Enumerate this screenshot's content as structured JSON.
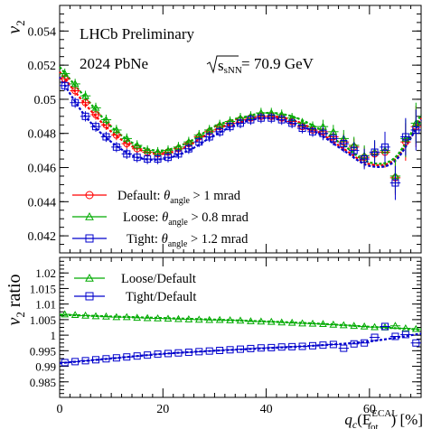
{
  "chart_data": [
    {
      "type": "scatter",
      "ylabel": "v2",
      "ylabel_parts": {
        "main": "v",
        "sub": "2"
      },
      "annotations": [
        "LHCb Preliminary",
        "2024 PbNe",
        "sNN",
        "= 70.9 GeV"
      ],
      "xlim": [
        0,
        70
      ],
      "ylim": [
        0.041,
        0.0555
      ],
      "x_ticks": [
        0,
        20,
        40,
        60
      ],
      "y_ticks": [
        "0.042",
        "0.044",
        "0.046",
        "0.048",
        "0.05",
        "0.052",
        "0.054"
      ],
      "y_tick_values": [
        0.042,
        0.044,
        0.046,
        0.048,
        0.05,
        0.052,
        0.054
      ],
      "legend_placement": "bottom-left",
      "legend": [
        {
          "prefix": "Default:",
          "theta": "θ",
          "sub": "angle",
          "suffix": "> 1 mrad",
          "color": "#ff0000",
          "marker": "circle"
        },
        {
          "prefix": "Loose:",
          "theta": "θ",
          "sub": "angle",
          "suffix": "> 0.8 mrad",
          "color": "#00aa00",
          "marker": "triangle"
        },
        {
          "prefix": "Tight:",
          "theta": "θ",
          "sub": "angle",
          "suffix": "> 1.2 mrad",
          "color": "#0000cc",
          "marker": "square"
        }
      ],
      "x": [
        1,
        3,
        5,
        7,
        9,
        11,
        13,
        15,
        17,
        19,
        21,
        23,
        25,
        27,
        29,
        31,
        33,
        35,
        37,
        39,
        41,
        43,
        45,
        47,
        49,
        51,
        53,
        55,
        57,
        59,
        61,
        63,
        65,
        67,
        69
      ],
      "series": [
        {
          "name": "Default",
          "color": "#ff0000",
          "marker": "circle",
          "values": [
            0.0512,
            0.0505,
            0.0498,
            0.0491,
            0.0485,
            0.0479,
            0.0474,
            0.0471,
            0.0469,
            0.0468,
            0.0469,
            0.0471,
            0.0474,
            0.0478,
            0.0481,
            0.0484,
            0.0486,
            0.0488,
            0.0489,
            0.049,
            0.049,
            0.0489,
            0.0487,
            0.0484,
            0.0482,
            0.0481,
            0.0478,
            0.0475,
            0.0472,
            0.0466,
            0.0468,
            0.0469,
            0.0454,
            0.0475,
            0.0484
          ],
          "errors": [
            0.0003,
            0.0003,
            0.0003,
            0.0003,
            0.0003,
            0.0003,
            0.0003,
            0.0003,
            0.0003,
            0.0003,
            0.0003,
            0.0003,
            0.0003,
            0.0003,
            0.0003,
            0.0003,
            0.0003,
            0.0003,
            0.0003,
            0.0003,
            0.0003,
            0.0003,
            0.0003,
            0.0003,
            0.0003,
            0.0004,
            0.0004,
            0.0005,
            0.0005,
            0.0006,
            0.0007,
            0.0009,
            0.001,
            0.0011,
            0.0012
          ]
        },
        {
          "name": "Loose",
          "color": "#00aa00",
          "marker": "triangle",
          "values": [
            0.0515,
            0.0509,
            0.0502,
            0.0495,
            0.0488,
            0.0482,
            0.0477,
            0.0473,
            0.047,
            0.0469,
            0.047,
            0.0472,
            0.0475,
            0.0479,
            0.0482,
            0.0485,
            0.0487,
            0.0489,
            0.049,
            0.0492,
            0.0492,
            0.0491,
            0.0489,
            0.0486,
            0.0484,
            0.0484,
            0.0481,
            0.0477,
            0.0473,
            0.0467,
            0.0469,
            0.047,
            0.0455,
            0.0477,
            0.0486
          ],
          "errors": [
            0.0003,
            0.0003,
            0.0003,
            0.0003,
            0.0003,
            0.0003,
            0.0003,
            0.0003,
            0.0003,
            0.0003,
            0.0003,
            0.0003,
            0.0003,
            0.0003,
            0.0003,
            0.0003,
            0.0003,
            0.0003,
            0.0003,
            0.0003,
            0.0003,
            0.0003,
            0.0003,
            0.0003,
            0.0003,
            0.0004,
            0.0004,
            0.0005,
            0.0005,
            0.0006,
            0.0007,
            0.0009,
            0.001,
            0.0011,
            0.0012
          ]
        },
        {
          "name": "Tight",
          "color": "#0000cc",
          "marker": "square",
          "values": [
            0.0508,
            0.0498,
            0.049,
            0.0484,
            0.0478,
            0.0472,
            0.0468,
            0.0466,
            0.0465,
            0.0465,
            0.0466,
            0.0468,
            0.0471,
            0.0475,
            0.0478,
            0.0481,
            0.0484,
            0.0486,
            0.0488,
            0.0489,
            0.0489,
            0.0488,
            0.0486,
            0.0483,
            0.0481,
            0.048,
            0.0477,
            0.0474,
            0.047,
            0.0465,
            0.0469,
            0.0472,
            0.0451,
            0.0478,
            0.0482
          ],
          "errors": [
            0.0003,
            0.0003,
            0.0003,
            0.0003,
            0.0003,
            0.0003,
            0.0003,
            0.0003,
            0.0003,
            0.0003,
            0.0003,
            0.0003,
            0.0003,
            0.0003,
            0.0003,
            0.0003,
            0.0003,
            0.0003,
            0.0003,
            0.0003,
            0.0003,
            0.0003,
            0.0003,
            0.0003,
            0.0003,
            0.0004,
            0.0004,
            0.0005,
            0.0005,
            0.0006,
            0.0007,
            0.0009,
            0.001,
            0.0011,
            0.0012
          ]
        }
      ],
      "fit_curves": [
        {
          "color": "#ff0000",
          "x": [
            0,
            5,
            10,
            15,
            20,
            25,
            30,
            35,
            40,
            45,
            50,
            55,
            60,
            65,
            70
          ],
          "values": [
            0.0516,
            0.0497,
            0.0481,
            0.0471,
            0.0468,
            0.0473,
            0.0482,
            0.0487,
            0.049,
            0.0488,
            0.0481,
            0.0471,
            0.0462,
            0.0465,
            0.0489
          ]
        },
        {
          "color": "#00aa00",
          "x": [
            0,
            5,
            10,
            15,
            20,
            25,
            30,
            35,
            40,
            45,
            50,
            55,
            60,
            65,
            70
          ],
          "values": [
            0.0519,
            0.0501,
            0.0484,
            0.0473,
            0.047,
            0.0475,
            0.0484,
            0.0489,
            0.0492,
            0.049,
            0.0483,
            0.0473,
            0.0463,
            0.0466,
            0.0491
          ]
        },
        {
          "color": "#0000cc",
          "x": [
            0,
            5,
            10,
            15,
            20,
            25,
            30,
            35,
            40,
            45,
            50,
            55,
            60,
            65,
            70
          ],
          "values": [
            0.0513,
            0.049,
            0.0475,
            0.0466,
            0.0465,
            0.047,
            0.0479,
            0.0486,
            0.0489,
            0.0486,
            0.048,
            0.047,
            0.0461,
            0.0464,
            0.0488
          ]
        }
      ]
    },
    {
      "type": "scatter",
      "ylabel": "v2 ratio",
      "ylabel_parts": {
        "main": "v",
        "sub": "2",
        "rest": " ratio"
      },
      "xlabel": "qc(EtotECAL) [%]",
      "xlabel_parts": {
        "q": "q",
        "qsub": "c",
        "open": "(E",
        "sup": "ECAL",
        "sub": "tot",
        "close": ") [%]"
      },
      "xlim": [
        0,
        70
      ],
      "ylim": [
        0.98,
        1.025
      ],
      "x_ticks": [
        0,
        20,
        40,
        60
      ],
      "y_ticks": [
        "0.985",
        "0.99",
        "0.995",
        "1",
        "1.005",
        "1.01",
        "1.015",
        "1.02"
      ],
      "y_tick_values": [
        0.985,
        0.99,
        0.995,
        1.0,
        1.005,
        1.01,
        1.015,
        1.02
      ],
      "legend_placement": "top-left",
      "legend": [
        {
          "label": "Loose/Default",
          "color": "#00aa00",
          "marker": "triangle"
        },
        {
          "label": "Tight/Default",
          "color": "#0000cc",
          "marker": "square"
        }
      ],
      "x": [
        1,
        3,
        5,
        7,
        9,
        11,
        13,
        15,
        17,
        19,
        21,
        23,
        25,
        27,
        29,
        31,
        33,
        35,
        37,
        39,
        41,
        43,
        45,
        47,
        49,
        51,
        53,
        55,
        57,
        59,
        61,
        63,
        65,
        67,
        69
      ],
      "series": [
        {
          "name": "Loose/Default",
          "color": "#00aa00",
          "marker": "triangle",
          "values": [
            1.0067,
            1.0065,
            1.0063,
            1.0061,
            1.006,
            1.0058,
            1.0058,
            1.0056,
            1.0055,
            1.0054,
            1.0053,
            1.0052,
            1.0051,
            1.005,
            1.0049,
            1.0049,
            1.0048,
            1.0047,
            1.0045,
            1.0044,
            1.0043,
            1.0041,
            1.004,
            1.0038,
            1.0037,
            1.0036,
            1.0034,
            1.0032,
            1.003,
            1.0028,
            1.0026,
            1.0025,
            1.003,
            1.0022,
            1.002
          ]
        },
        {
          "name": "Tight/Default",
          "color": "#0000cc",
          "marker": "square",
          "values": [
            0.9912,
            0.9915,
            0.9918,
            0.9921,
            0.9924,
            0.9927,
            0.993,
            0.9933,
            0.9936,
            0.9939,
            0.9941,
            0.9943,
            0.9945,
            0.9947,
            0.9949,
            0.9951,
            0.9953,
            0.9955,
            0.9957,
            0.9959,
            0.996,
            0.9962,
            0.9963,
            0.9964,
            0.9966,
            0.9968,
            0.997,
            0.9958,
            0.9972,
            0.9975,
            0.9993,
            1.0028,
            0.9996,
            1.0002,
            0.9975
          ]
        }
      ],
      "fit_curves": [
        {
          "color": "#00aa00",
          "x": [
            0,
            10,
            20,
            30,
            40,
            50,
            60,
            70
          ],
          "values": [
            1.0066,
            1.006,
            1.0055,
            1.005,
            1.0044,
            1.0037,
            1.0027,
            1.0018
          ]
        },
        {
          "color": "#0000cc",
          "x": [
            0,
            10,
            20,
            30,
            40,
            50,
            60,
            70
          ],
          "values": [
            0.991,
            0.9925,
            0.994,
            0.995,
            0.9958,
            0.9967,
            0.998,
            1.0005
          ]
        }
      ]
    }
  ]
}
